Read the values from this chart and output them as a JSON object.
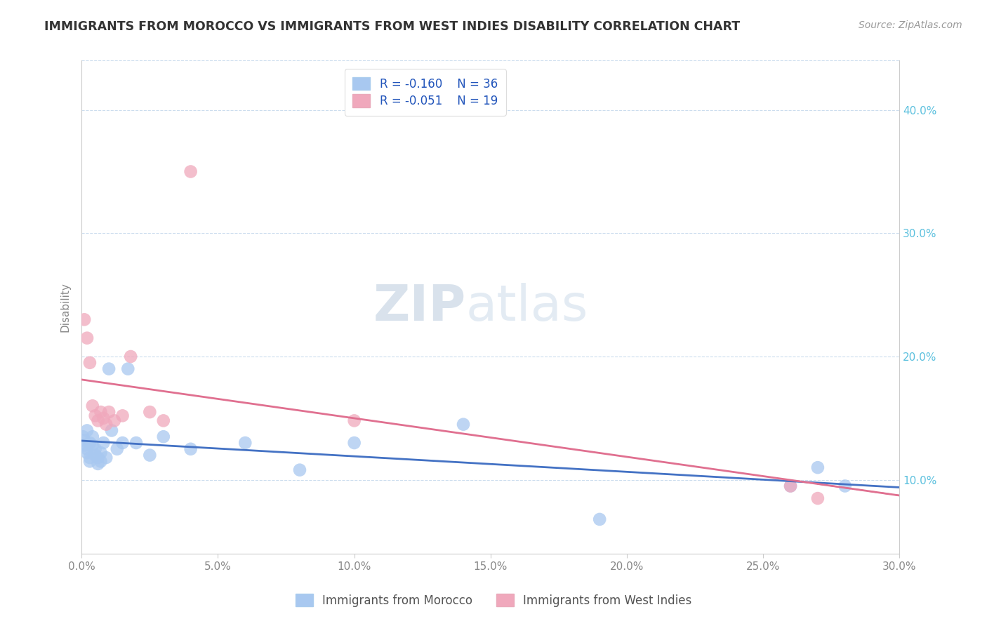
{
  "title": "IMMIGRANTS FROM MOROCCO VS IMMIGRANTS FROM WEST INDIES DISABILITY CORRELATION CHART",
  "source": "Source: ZipAtlas.com",
  "ylabel": "Disability",
  "legend_label1": "Immigrants from Morocco",
  "legend_label2": "Immigrants from West Indies",
  "legend_R1": "R = -0.160",
  "legend_N1": "N = 36",
  "legend_R2": "R = -0.051",
  "legend_N2": "N = 19",
  "color_morocco": "#A8C8F0",
  "color_westindies": "#F0A8BC",
  "color_line_morocco": "#4472C4",
  "color_line_westindies": "#E07090",
  "xlim": [
    0.0,
    0.3
  ],
  "ylim": [
    0.04,
    0.44
  ],
  "xticks": [
    0.0,
    0.05,
    0.1,
    0.15,
    0.2,
    0.25,
    0.3
  ],
  "yticks": [
    0.1,
    0.2,
    0.3,
    0.4
  ],
  "morocco_x": [
    0.0005,
    0.001,
    0.001,
    0.002,
    0.002,
    0.002,
    0.003,
    0.003,
    0.003,
    0.004,
    0.004,
    0.005,
    0.005,
    0.006,
    0.006,
    0.007,
    0.007,
    0.008,
    0.009,
    0.01,
    0.011,
    0.013,
    0.015,
    0.017,
    0.02,
    0.025,
    0.03,
    0.04,
    0.06,
    0.08,
    0.1,
    0.14,
    0.19,
    0.26,
    0.27,
    0.28
  ],
  "morocco_y": [
    0.135,
    0.132,
    0.128,
    0.14,
    0.125,
    0.122,
    0.13,
    0.118,
    0.115,
    0.135,
    0.128,
    0.12,
    0.125,
    0.118,
    0.113,
    0.122,
    0.115,
    0.13,
    0.118,
    0.19,
    0.14,
    0.125,
    0.13,
    0.19,
    0.13,
    0.12,
    0.135,
    0.125,
    0.13,
    0.108,
    0.13,
    0.145,
    0.068,
    0.095,
    0.11,
    0.095
  ],
  "westindies_x": [
    0.001,
    0.002,
    0.003,
    0.004,
    0.005,
    0.006,
    0.007,
    0.008,
    0.009,
    0.01,
    0.012,
    0.015,
    0.018,
    0.025,
    0.03,
    0.04,
    0.1,
    0.26,
    0.27
  ],
  "westindies_y": [
    0.23,
    0.215,
    0.195,
    0.16,
    0.152,
    0.148,
    0.155,
    0.15,
    0.145,
    0.155,
    0.148,
    0.152,
    0.2,
    0.155,
    0.148,
    0.35,
    0.148,
    0.095,
    0.085
  ],
  "grid_color": "#CCDDEE",
  "title_color": "#333333",
  "source_color": "#999999",
  "ylabel_color": "#888888",
  "xtick_color": "#888888",
  "ytick_color": "#5BC0DE",
  "watermark_zip_color": "#C8D8E8",
  "watermark_atlas_color": "#C8D8E8"
}
